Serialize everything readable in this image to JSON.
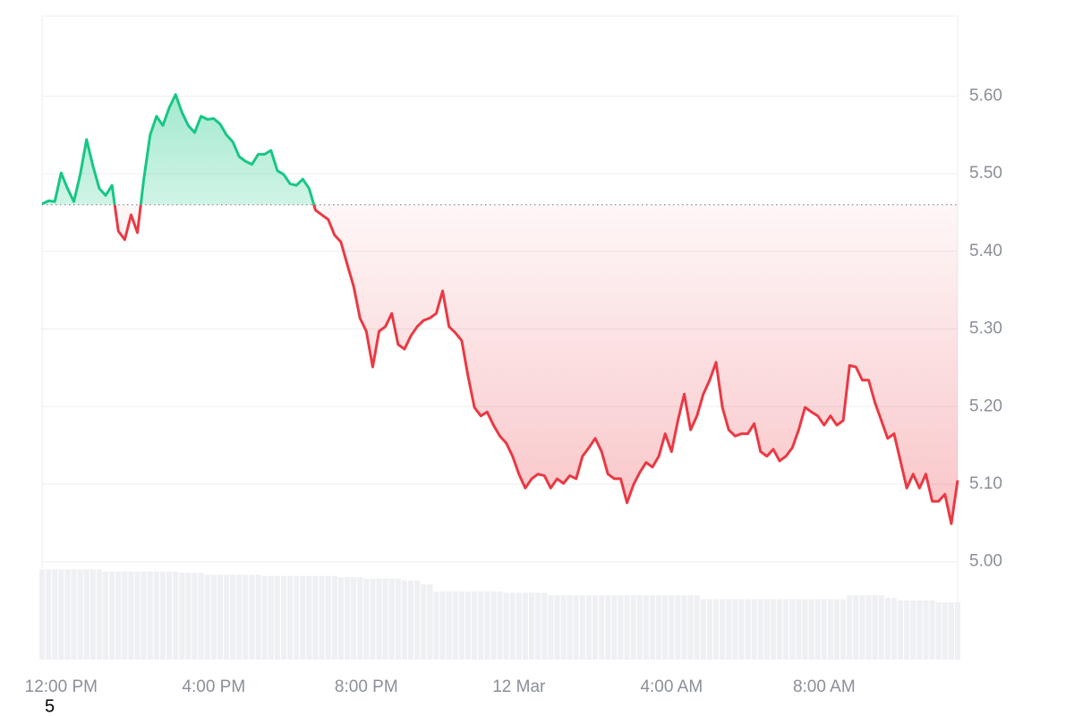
{
  "chart_data": {
    "type": "line",
    "categories": [
      null,
      null,
      null,
      "12:00 PM",
      null,
      null,
      null,
      null,
      null,
      null,
      null,
      null,
      null,
      null,
      null,
      null,
      null,
      null,
      null,
      null,
      null,
      null,
      null,
      null,
      null,
      null,
      null,
      "4:00 PM",
      null,
      null,
      null,
      null,
      null,
      null,
      null,
      null,
      null,
      null,
      null,
      null,
      null,
      null,
      null,
      null,
      null,
      null,
      null,
      null,
      null,
      null,
      null,
      "8:00 PM",
      null,
      null,
      null,
      null,
      null,
      null,
      null,
      null,
      null,
      null,
      null,
      null,
      null,
      null,
      null,
      null,
      null,
      null,
      null,
      null,
      null,
      null,
      null,
      "12 Mar",
      null,
      null,
      null,
      null,
      null,
      null,
      null,
      null,
      null,
      null,
      null,
      null,
      null,
      null,
      null,
      null,
      null,
      null,
      null,
      null,
      null,
      null,
      null,
      "4:00 AM",
      null,
      null,
      null,
      null,
      null,
      null,
      null,
      null,
      null,
      null,
      null,
      null,
      null,
      null,
      null,
      null,
      null,
      null,
      null,
      null,
      null,
      null,
      null,
      "8:00 AM",
      null,
      null,
      null,
      null,
      null,
      null,
      null,
      null,
      null,
      null,
      null,
      null,
      null,
      null,
      null,
      null,
      null,
      null,
      null,
      null,
      null
    ],
    "values": [
      5.461,
      5.465,
      5.464,
      5.501,
      5.481,
      5.464,
      5.499,
      5.544,
      5.51,
      5.481,
      5.472,
      5.485,
      5.426,
      5.415,
      5.447,
      5.424,
      5.493,
      5.55,
      5.574,
      5.562,
      5.585,
      5.602,
      5.579,
      5.562,
      5.553,
      5.574,
      5.57,
      5.571,
      5.564,
      5.55,
      5.541,
      5.522,
      5.516,
      5.512,
      5.525,
      5.525,
      5.53,
      5.504,
      5.499,
      5.487,
      5.485,
      5.493,
      5.481,
      5.453,
      5.447,
      5.441,
      5.421,
      5.412,
      5.383,
      5.355,
      5.314,
      5.297,
      5.251,
      5.297,
      5.303,
      5.32,
      5.28,
      5.274,
      5.291,
      5.303,
      5.311,
      5.314,
      5.32,
      5.349,
      5.303,
      5.295,
      5.285,
      5.239,
      5.199,
      5.188,
      5.193,
      5.176,
      5.162,
      5.153,
      5.136,
      5.113,
      5.095,
      5.107,
      5.113,
      5.111,
      5.095,
      5.107,
      5.101,
      5.111,
      5.107,
      5.136,
      5.147,
      5.159,
      5.142,
      5.113,
      5.107,
      5.107,
      5.076,
      5.099,
      5.115,
      5.128,
      5.122,
      5.136,
      5.165,
      5.142,
      5.182,
      5.216,
      5.17,
      5.188,
      5.216,
      5.234,
      5.257,
      5.199,
      5.17,
      5.162,
      5.165,
      5.165,
      5.178,
      5.142,
      5.136,
      5.145,
      5.13,
      5.136,
      5.147,
      5.17,
      5.199,
      5.193,
      5.188,
      5.176,
      5.188,
      5.176,
      5.182,
      5.253,
      5.251,
      5.234,
      5.234,
      5.205,
      5.182,
      5.159,
      5.165,
      5.13,
      5.095,
      5.113,
      5.095,
      5.113,
      5.078,
      5.078,
      5.087,
      5.049,
      5.105
    ],
    "baseline": 5.46,
    "up_color": "#16c784",
    "down_color": "#ea3943",
    "ylim": [
      4.874,
      5.703
    ],
    "yticks": [
      {
        "value": 5.0,
        "label": "5.00"
      },
      {
        "value": 5.1,
        "label": "5.10"
      },
      {
        "value": 5.2,
        "label": "5.20"
      },
      {
        "value": 5.3,
        "label": "5.30"
      },
      {
        "value": 5.4,
        "label": "5.40"
      },
      {
        "value": 5.5,
        "label": "5.50"
      },
      {
        "value": 5.6,
        "label": "5.60"
      }
    ],
    "grid": true,
    "volume": [
      14.0,
      14.0,
      14.0,
      14.0,
      14.0,
      14.0,
      14.0,
      14.0,
      14.0,
      14.0,
      13.7,
      13.7,
      13.7,
      13.7,
      13.7,
      13.7,
      13.7,
      13.7,
      13.7,
      13.7,
      13.7,
      13.7,
      13.5,
      13.5,
      13.5,
      13.5,
      13.2,
      13.2,
      13.2,
      13.2,
      13.2,
      13.2,
      13.2,
      13.2,
      13.2,
      13.0,
      13.0,
      13.0,
      13.0,
      13.0,
      13.0,
      13.0,
      13.0,
      13.0,
      13.0,
      13.0,
      13.0,
      12.8,
      12.8,
      12.8,
      12.8,
      12.6,
      12.6,
      12.6,
      12.6,
      12.6,
      12.6,
      12.3,
      12.3,
      12.3,
      11.7,
      11.7,
      10.6,
      10.6,
      10.6,
      10.6,
      10.6,
      10.6,
      10.6,
      10.6,
      10.6,
      10.6,
      10.6,
      10.4,
      10.4,
      10.4,
      10.4,
      10.4,
      10.4,
      10.4,
      10.0,
      10.0,
      10.0,
      10.0,
      10.0,
      10.0,
      10.0,
      10.0,
      10.0,
      10.0,
      10.0,
      10.0,
      10.0,
      10.0,
      10.0,
      10.0,
      10.0,
      10.0,
      10.0,
      10.0,
      10.0,
      10.0,
      10.0,
      10.0,
      9.4,
      9.4,
      9.4,
      9.4,
      9.4,
      9.4,
      9.4,
      9.4,
      9.4,
      9.4,
      9.4,
      9.4,
      9.4,
      9.4,
      9.4,
      9.4,
      9.4,
      9.4,
      9.4,
      9.4,
      9.4,
      9.4,
      9.4,
      10.0,
      10.0,
      10.0,
      10.0,
      10.0,
      10.0,
      9.6,
      9.6,
      9.2,
      9.2,
      9.2,
      9.2,
      9.2,
      9.2,
      8.9,
      8.9,
      8.9,
      8.9
    ],
    "volume_ylim": [
      0,
      100
    ],
    "volume_color": "#eef0f4",
    "footer_text": "5"
  }
}
